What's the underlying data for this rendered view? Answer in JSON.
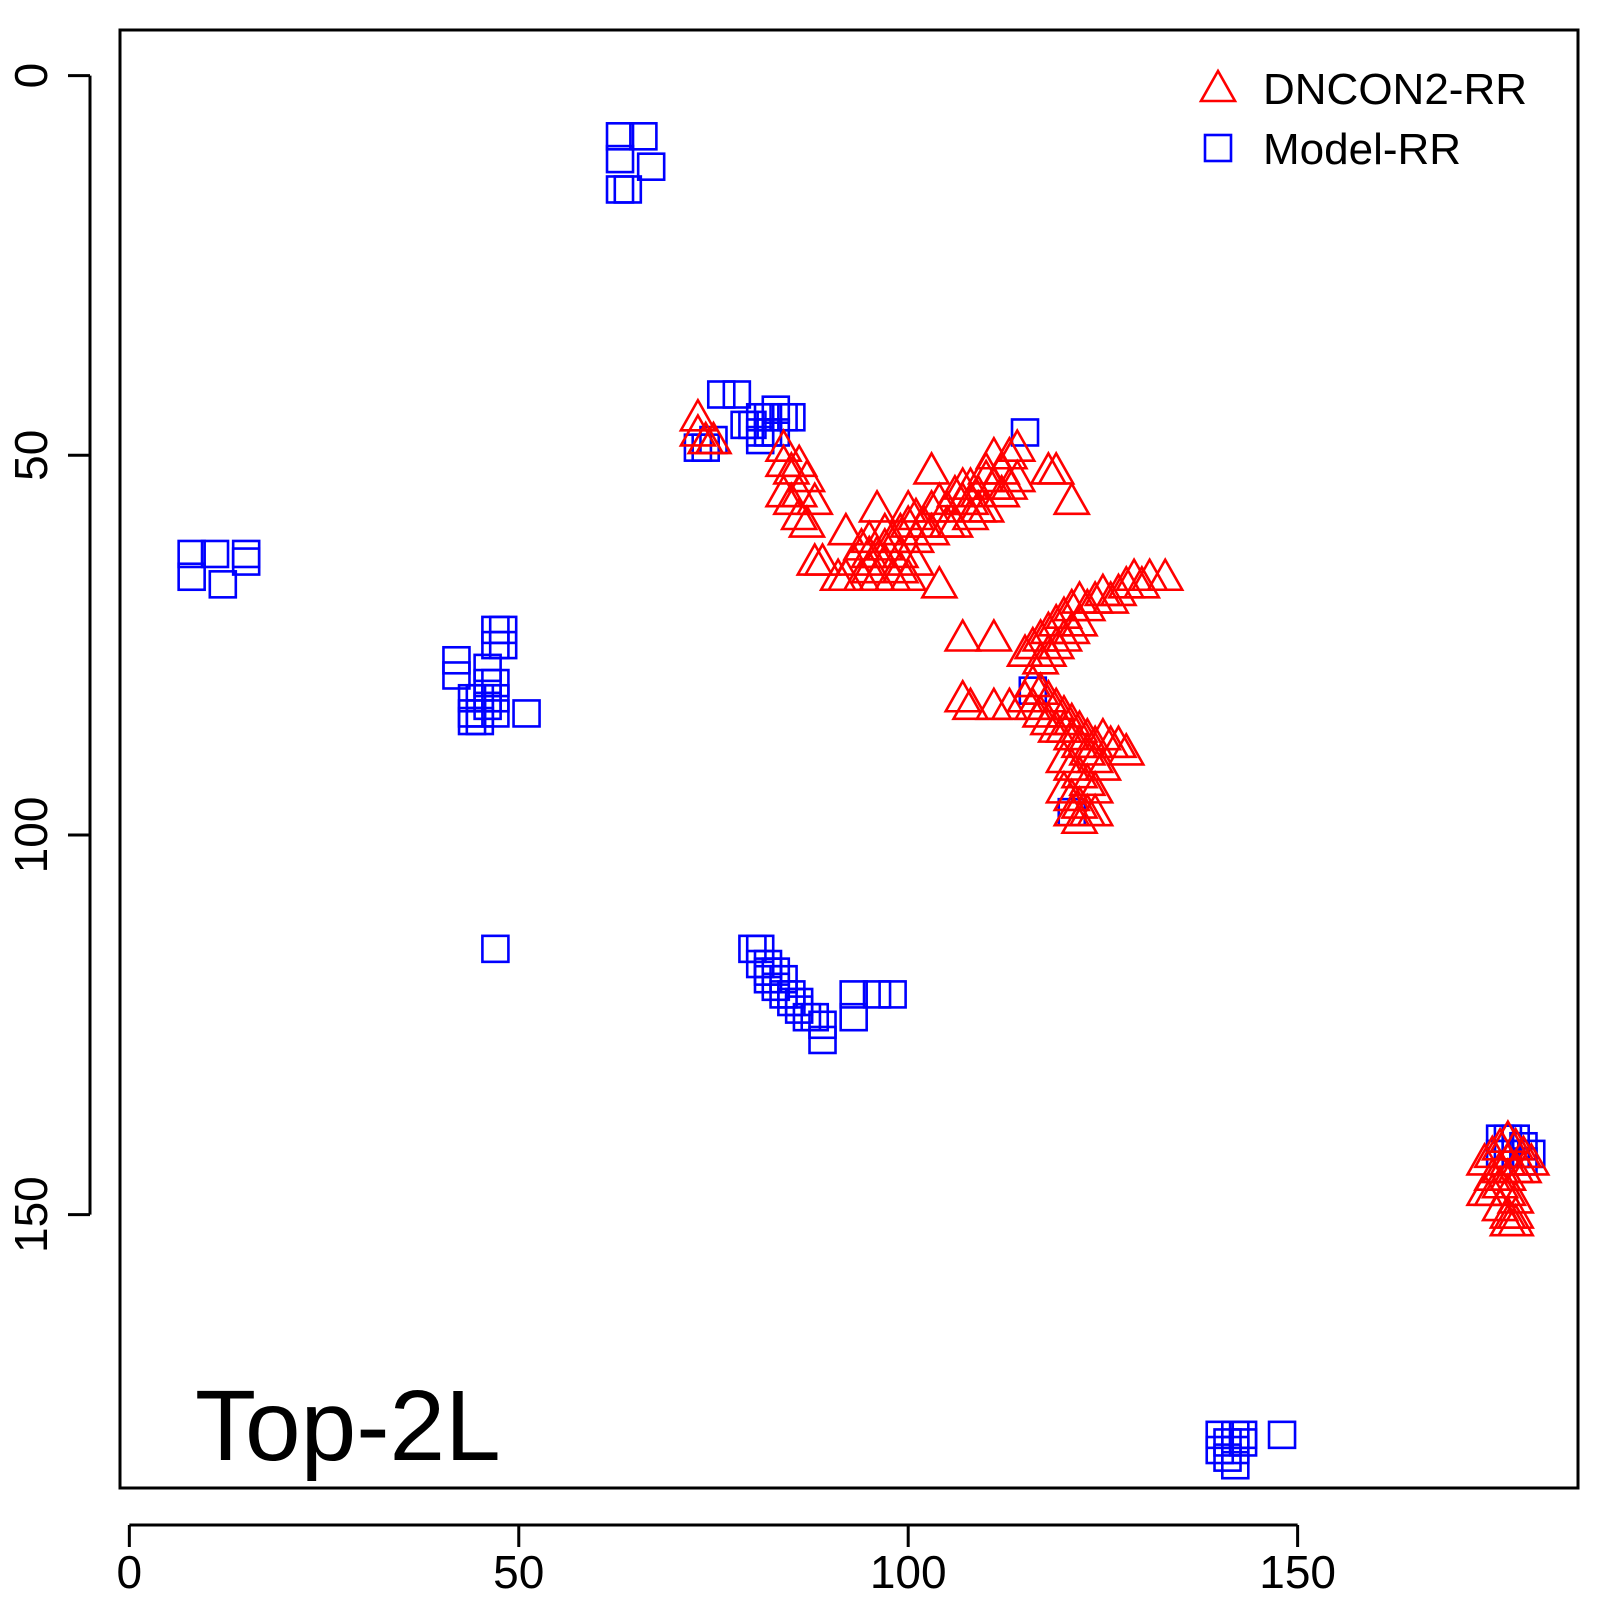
{
  "chart_data": {
    "type": "scatter",
    "title": "",
    "xlabel": "",
    "ylabel": "",
    "xlim": [
      -1.2,
      186
    ],
    "ylim": [
      186,
      -6
    ],
    "y_reversed": true,
    "x_ticks": [
      0,
      50,
      100,
      150
    ],
    "y_ticks": [
      0,
      50,
      100,
      150
    ],
    "x_tick_labels": [
      "0",
      "50",
      "100",
      "150"
    ],
    "y_tick_labels": [
      "0",
      "50",
      "100",
      "150"
    ],
    "grid": false,
    "legend_position": "top-right",
    "annotation": "Top-2L",
    "series": [
      {
        "name": "DNCON2-RR",
        "marker": "triangle",
        "color": "#ff0000",
        "points": [
          [
            73,
            45
          ],
          [
            73,
            47
          ],
          [
            74,
            48
          ],
          [
            75,
            48
          ],
          [
            84,
            49
          ],
          [
            84,
            51
          ],
          [
            85,
            52
          ],
          [
            86,
            51
          ],
          [
            87,
            53
          ],
          [
            84,
            55
          ],
          [
            85,
            56
          ],
          [
            86,
            55
          ],
          [
            88,
            56
          ],
          [
            86,
            58
          ],
          [
            87,
            59
          ],
          [
            92,
            60
          ],
          [
            88,
            64
          ],
          [
            89,
            64
          ],
          [
            91,
            66
          ],
          [
            92,
            66
          ],
          [
            93,
            64
          ],
          [
            94,
            66
          ],
          [
            95,
            65
          ],
          [
            96,
            66
          ],
          [
            97,
            64
          ],
          [
            98,
            66
          ],
          [
            99,
            65
          ],
          [
            100,
            66
          ],
          [
            101,
            64
          ],
          [
            104,
            67
          ],
          [
            94,
            62
          ],
          [
            95,
            61
          ],
          [
            96,
            63
          ],
          [
            97,
            62
          ],
          [
            98,
            61
          ],
          [
            99,
            60
          ],
          [
            100,
            59
          ],
          [
            101,
            58
          ],
          [
            102,
            59
          ],
          [
            103,
            57
          ],
          [
            104,
            56
          ],
          [
            105,
            57
          ],
          [
            106,
            55
          ],
          [
            107,
            56
          ],
          [
            108,
            54
          ],
          [
            109,
            55
          ],
          [
            110,
            53
          ],
          [
            111,
            54
          ],
          [
            96,
            57
          ],
          [
            100,
            57
          ],
          [
            103,
            52
          ],
          [
            106,
            59
          ],
          [
            108,
            58
          ],
          [
            110,
            57
          ],
          [
            111,
            50
          ],
          [
            112,
            52
          ],
          [
            113,
            50
          ],
          [
            114,
            49
          ],
          [
            118,
            52
          ],
          [
            119,
            52
          ],
          [
            121,
            56
          ],
          [
            107,
            54
          ],
          [
            108,
            56
          ],
          [
            109,
            57
          ],
          [
            110,
            52
          ],
          [
            112,
            55
          ],
          [
            113,
            54
          ],
          [
            114,
            53
          ],
          [
            95,
            63
          ],
          [
            97,
            60
          ],
          [
            99,
            63
          ],
          [
            101,
            61
          ],
          [
            103,
            60
          ],
          [
            105,
            59
          ],
          [
            107,
            74
          ],
          [
            111,
            74
          ],
          [
            115,
            76
          ],
          [
            116,
            75
          ],
          [
            117,
            74
          ],
          [
            118,
            73
          ],
          [
            119,
            72
          ],
          [
            120,
            71
          ],
          [
            121,
            70
          ],
          [
            122,
            69
          ],
          [
            123,
            70
          ],
          [
            124,
            69
          ],
          [
            125,
            68
          ],
          [
            126,
            69
          ],
          [
            127,
            68
          ],
          [
            128,
            67
          ],
          [
            129,
            66
          ],
          [
            130,
            67
          ],
          [
            131,
            66
          ],
          [
            133,
            66
          ],
          [
            117,
            77
          ],
          [
            118,
            76
          ],
          [
            119,
            75
          ],
          [
            120,
            74
          ],
          [
            121,
            73
          ],
          [
            122,
            72
          ],
          [
            107,
            82
          ],
          [
            108,
            83
          ],
          [
            111,
            83
          ],
          [
            113,
            83
          ],
          [
            115,
            82
          ],
          [
            116,
            80
          ],
          [
            117,
            81
          ],
          [
            118,
            82
          ],
          [
            119,
            83
          ],
          [
            120,
            84
          ],
          [
            121,
            85
          ],
          [
            122,
            86
          ],
          [
            123,
            87
          ],
          [
            124,
            88
          ],
          [
            125,
            87
          ],
          [
            126,
            88
          ],
          [
            127,
            88
          ],
          [
            128,
            89
          ],
          [
            116,
            83
          ],
          [
            117,
            84
          ],
          [
            118,
            85
          ],
          [
            119,
            86
          ],
          [
            120,
            86
          ],
          [
            121,
            87
          ],
          [
            122,
            88
          ],
          [
            123,
            89
          ],
          [
            124,
            90
          ],
          [
            125,
            91
          ],
          [
            120,
            90
          ],
          [
            121,
            91
          ],
          [
            122,
            92
          ],
          [
            123,
            93
          ],
          [
            124,
            94
          ],
          [
            120,
            94
          ],
          [
            121,
            95
          ],
          [
            122,
            96
          ],
          [
            123,
            97
          ],
          [
            121,
            97
          ],
          [
            122,
            98
          ],
          [
            124,
            97
          ],
          [
            174,
            143
          ],
          [
            175,
            142
          ],
          [
            176,
            141
          ],
          [
            177,
            140
          ],
          [
            178,
            141
          ],
          [
            179,
            142
          ],
          [
            180,
            143
          ],
          [
            176,
            144
          ],
          [
            177,
            145
          ],
          [
            178,
            144
          ],
          [
            174,
            147
          ],
          [
            175,
            147
          ],
          [
            176,
            146
          ],
          [
            177,
            147
          ],
          [
            178,
            148
          ],
          [
            176,
            149
          ],
          [
            177,
            150
          ],
          [
            178,
            150
          ],
          [
            177,
            151
          ],
          [
            178,
            151
          ],
          [
            175,
            145
          ],
          [
            179,
            144
          ],
          [
            177,
            143
          ]
        ]
      },
      {
        "name": "Model-RR",
        "marker": "square",
        "color": "#0000ff",
        "points": [
          [
            63,
            8
          ],
          [
            66,
            8
          ],
          [
            63,
            11
          ],
          [
            67,
            12
          ],
          [
            63,
            15
          ],
          [
            64,
            15
          ],
          [
            8,
            63
          ],
          [
            11,
            63
          ],
          [
            15,
            63
          ],
          [
            8,
            66
          ],
          [
            12,
            67
          ],
          [
            15,
            64
          ],
          [
            42,
            77
          ],
          [
            42,
            79
          ],
          [
            47,
            73
          ],
          [
            48,
            73
          ],
          [
            47,
            75
          ],
          [
            48,
            75
          ],
          [
            46,
            78
          ],
          [
            46,
            80
          ],
          [
            47,
            80
          ],
          [
            44,
            82
          ],
          [
            45,
            82
          ],
          [
            46,
            82
          ],
          [
            47,
            82
          ],
          [
            44,
            84
          ],
          [
            45,
            84
          ],
          [
            46,
            83
          ],
          [
            47,
            84
          ],
          [
            45,
            85
          ],
          [
            44,
            85
          ],
          [
            51,
            84
          ],
          [
            76,
            42
          ],
          [
            78,
            42
          ],
          [
            79,
            46
          ],
          [
            80,
            46
          ],
          [
            81,
            45
          ],
          [
            82,
            45
          ],
          [
            83,
            44
          ],
          [
            84,
            45
          ],
          [
            85,
            45
          ],
          [
            81,
            47
          ],
          [
            82,
            47
          ],
          [
            83,
            47
          ],
          [
            81,
            48
          ],
          [
            73,
            49
          ],
          [
            74,
            49
          ],
          [
            75,
            48
          ],
          [
            115,
            47
          ],
          [
            116,
            81
          ],
          [
            121,
            97
          ],
          [
            47,
            115
          ],
          [
            80,
            115
          ],
          [
            81,
            115
          ],
          [
            81,
            117
          ],
          [
            82,
            117
          ],
          [
            82,
            118
          ],
          [
            83,
            118
          ],
          [
            82,
            119
          ],
          [
            83,
            120
          ],
          [
            84,
            119
          ],
          [
            84,
            121
          ],
          [
            85,
            121
          ],
          [
            85,
            122
          ],
          [
            86,
            122
          ],
          [
            86,
            123
          ],
          [
            87,
            124
          ],
          [
            88,
            124
          ],
          [
            89,
            125
          ],
          [
            89,
            127
          ],
          [
            93,
            121
          ],
          [
            96,
            121
          ],
          [
            98,
            121
          ],
          [
            93,
            124
          ],
          [
            140,
            179
          ],
          [
            141,
            180
          ],
          [
            142,
            179
          ],
          [
            143,
            179
          ],
          [
            140,
            181
          ],
          [
            141,
            182
          ],
          [
            142,
            181
          ],
          [
            143,
            180
          ],
          [
            142,
            183
          ],
          [
            148,
            179
          ],
          [
            176,
            140
          ],
          [
            177,
            140
          ],
          [
            178,
            140
          ],
          [
            179,
            141
          ],
          [
            176,
            142
          ],
          [
            177,
            142
          ],
          [
            178,
            142
          ],
          [
            179,
            143
          ],
          [
            180,
            142
          ]
        ]
      }
    ]
  }
}
